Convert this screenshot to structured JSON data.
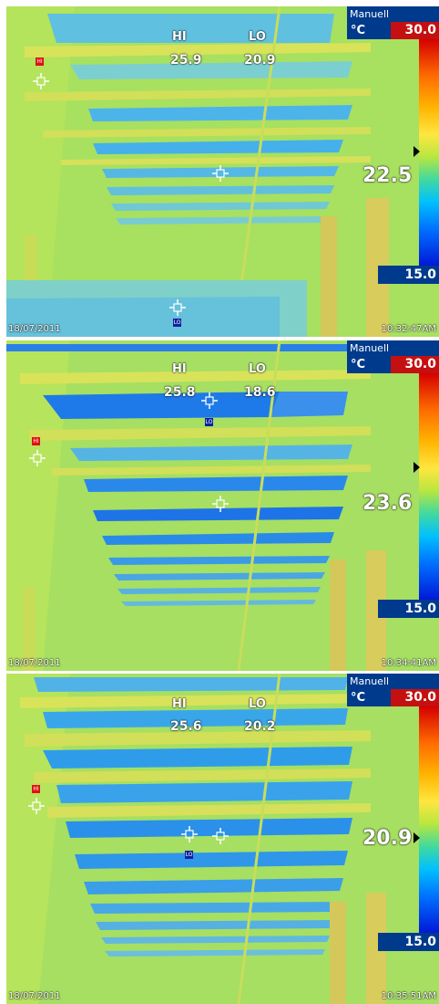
{
  "panels": [
    {
      "mode": "Manuell",
      "unit": "°C",
      "scale_max": "30.0",
      "scale_min": "15.0",
      "hi_label": "HI",
      "lo_label": "LO",
      "hi_value": "25.9",
      "lo_value": "20.9",
      "center_temp": "22.5",
      "date": "18/07/2011",
      "time": "10:32:47AM",
      "hi_tag": "HI",
      "lo_tag": "LO"
    },
    {
      "mode": "Manuell",
      "unit": "°C",
      "scale_max": "30.0",
      "scale_min": "15.0",
      "hi_label": "HI",
      "lo_label": "LO",
      "hi_value": "25.8",
      "lo_value": "18.6",
      "center_temp": "23.6",
      "date": "18/07/2011",
      "time": "10:34:41AM",
      "hi_tag": "HI",
      "lo_tag": "LO"
    },
    {
      "mode": "Manuell",
      "unit": "°C",
      "scale_max": "30.0",
      "scale_min": "15.0",
      "hi_label": "HI",
      "lo_label": "LO",
      "hi_value": "25.6",
      "lo_value": "20.2",
      "center_temp": "20.9",
      "date": "18/07/2011",
      "time": "10:35:51AM",
      "hi_tag": "HI",
      "lo_tag": "LO"
    }
  ],
  "colors": {
    "scale_header": "#003a8c",
    "max_box": "#c41010",
    "scene_base": "#a8e060",
    "cool_band": "#2aa6ee",
    "beam": "#d8e35a"
  }
}
